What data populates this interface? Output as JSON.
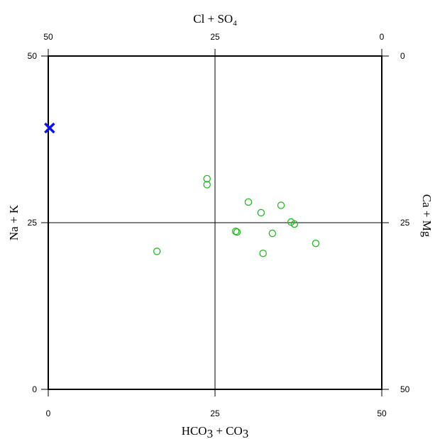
{
  "chart_data": {
    "type": "scatter",
    "title": "",
    "x_bottom": {
      "label_main": "HCO",
      "label_sub": "3",
      "label_mid": " + CO",
      "label_sub2": "3",
      "ticks": [
        "0",
        "25",
        "50"
      ],
      "range": [
        0,
        50
      ]
    },
    "x_top": {
      "label_main": "Cl + SO",
      "label_sub": "4",
      "ticks": [
        "50",
        "25",
        "0"
      ],
      "range": [
        50,
        0
      ]
    },
    "y_left": {
      "label": "Na + K",
      "ticks": [
        "0",
        "25",
        "50"
      ],
      "range": [
        0,
        50
      ]
    },
    "y_right": {
      "label": "Ca + Mg",
      "ticks": [
        "50",
        "25",
        "0"
      ],
      "range": [
        50,
        0
      ]
    },
    "center_lines": {
      "x": 25,
      "y": 25
    },
    "series": [
      {
        "marker": "circle-open",
        "color": "#22bb22",
        "points": [
          [
            16.3,
            20.7
          ],
          [
            23.8,
            31.6
          ],
          [
            23.8,
            30.7
          ],
          [
            28.1,
            23.7
          ],
          [
            28.3,
            23.6
          ],
          [
            30.0,
            28.1
          ],
          [
            31.9,
            26.5
          ],
          [
            32.2,
            20.4
          ],
          [
            33.6,
            23.4
          ],
          [
            34.9,
            27.6
          ],
          [
            36.4,
            25.1
          ],
          [
            36.9,
            24.8
          ],
          [
            40.1,
            21.9
          ]
        ]
      },
      {
        "marker": "cross",
        "color": "#0a14e6",
        "points": [
          [
            0.2,
            39.2
          ]
        ]
      }
    ]
  }
}
